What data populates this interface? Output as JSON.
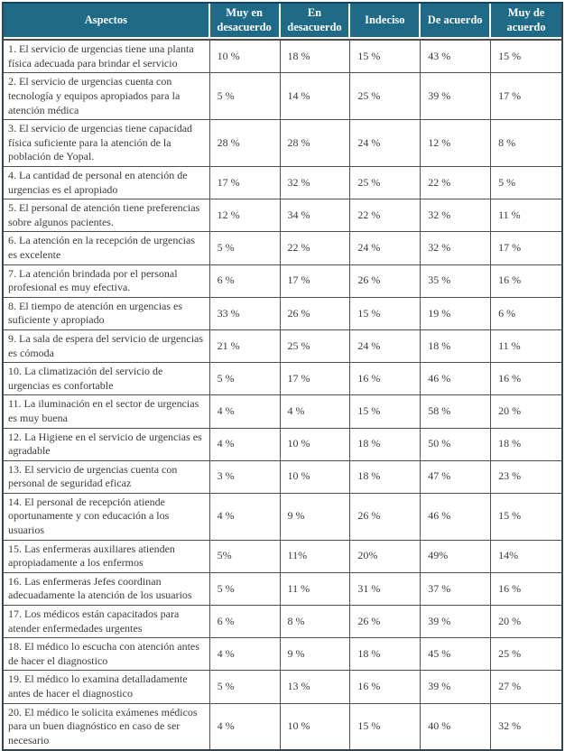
{
  "table": {
    "columns": [
      "Aspectos",
      "Muy en desacuerdo",
      "En desacuerdo",
      "Indeciso",
      "De acuerdo",
      "Muy de acuerdo"
    ],
    "rows": [
      {
        "aspect": "1. El servicio de urgencias tiene una planta física adecuada para brindar el servicio",
        "values": [
          "10 %",
          "18 %",
          "15 %",
          "43 %",
          "15 %"
        ]
      },
      {
        "aspect": "2. El servicio de urgencias cuenta con tecnología y equipos apropiados para la atención médica",
        "values": [
          "5 %",
          "14 %",
          "25 %",
          "39 %",
          "17 %"
        ]
      },
      {
        "aspect": "3. El servicio de urgencias tiene capacidad física suficiente para la atención de la población de Yopal.",
        "values": [
          "28 %",
          "28 %",
          "24 %",
          "12 %",
          "8 %"
        ]
      },
      {
        "aspect": "4. La cantidad de personal en atención de urgencias es el apropiado",
        "values": [
          "17 %",
          "32 %",
          "25 %",
          "22 %",
          "5 %"
        ]
      },
      {
        "aspect": "5. El personal de atención tiene preferencias sobre algunos pacientes.",
        "values": [
          "12 %",
          "34 %",
          "22 %",
          "32 %",
          "11 %"
        ]
      },
      {
        "aspect": "6. La atención en la recepción de urgencias es excelente",
        "values": [
          "5 %",
          "22 %",
          "24 %",
          "32 %",
          "17 %"
        ]
      },
      {
        "aspect": "7. La atención brindada por el personal profesional es muy efectiva.",
        "values": [
          "6 %",
          "17 %",
          "26 %",
          "35 %",
          "16 %"
        ]
      },
      {
        "aspect": "8. El tiempo de atención en urgencias es suficiente y apropiado",
        "values": [
          "33 %",
          "26 %",
          "15 %",
          "19 %",
          "6 %"
        ]
      },
      {
        "aspect": "9. La sala de espera del servicio de urgencias es cómoda",
        "values": [
          "21 %",
          "25 %",
          "24 %",
          "18 %",
          "11 %"
        ]
      },
      {
        "aspect": "10. La climatización del servicio de urgencias es confortable",
        "values": [
          "5 %",
          "17 %",
          "16 %",
          "46 %",
          "16 %"
        ]
      },
      {
        "aspect": "11. La iluminación en el sector de urgencias es muy buena",
        "values": [
          "4 %",
          "4 %",
          "15 %",
          "58 %",
          "20 %"
        ]
      },
      {
        "aspect": "12. La Higiene en el servicio de urgencias es agradable",
        "values": [
          "4 %",
          "10 %",
          "18 %",
          "50 %",
          "18 %"
        ]
      },
      {
        "aspect": "13. El servicio de urgencias cuenta con personal de seguridad eficaz",
        "values": [
          "3 %",
          "10 %",
          "18 %",
          "47 %",
          "23 %"
        ]
      },
      {
        "aspect": "14. El personal de recepción atiende oportunamente y con educación a los usuarios",
        "values": [
          "4 %",
          "9 %",
          "26 %",
          "46 %",
          "15 %"
        ]
      },
      {
        "aspect": "15. Las enfermeras auxiliares atienden apropiadamente a los enfermos",
        "values": [
          "5%",
          "11%",
          "20%",
          "49%",
          "14%"
        ]
      },
      {
        "aspect": "16. Las enfermeras Jefes coordinan adecuadamente la atención de los usuarios",
        "values": [
          "5 %",
          "11 %",
          "31 %",
          "37 %",
          "16 %"
        ]
      },
      {
        "aspect": "17. Los médicos están capacitados para atender enfermedades urgentes",
        "values": [
          "6 %",
          "8 %",
          "26 %",
          "39 %",
          "20 %"
        ]
      },
      {
        "aspect": "18. El médico lo escucha con atención antes de hacer el diagnostico",
        "values": [
          "4 %",
          "9 %",
          "18 %",
          "45 %",
          "25 %"
        ]
      },
      {
        "aspect": "19. El médico lo examina detalladamente antes de hacer el diagnostico",
        "values": [
          "5 %",
          "13 %",
          "16 %",
          "39 %",
          "27 %"
        ]
      },
      {
        "aspect": "20. El médico le solicita exámenes médicos para un buen diagnóstico en caso de ser necesario",
        "values": [
          "4 %",
          "10 %",
          "15 %",
          "40 %",
          "32 %"
        ]
      }
    ]
  },
  "colors": {
    "header_bg": "#1e6a87",
    "header_text": "#ffffff",
    "body_text": "#3a3a3a",
    "grid_line": "#4f4f4f",
    "outer_border": "#35454d",
    "header_top_border": "#16465c"
  }
}
